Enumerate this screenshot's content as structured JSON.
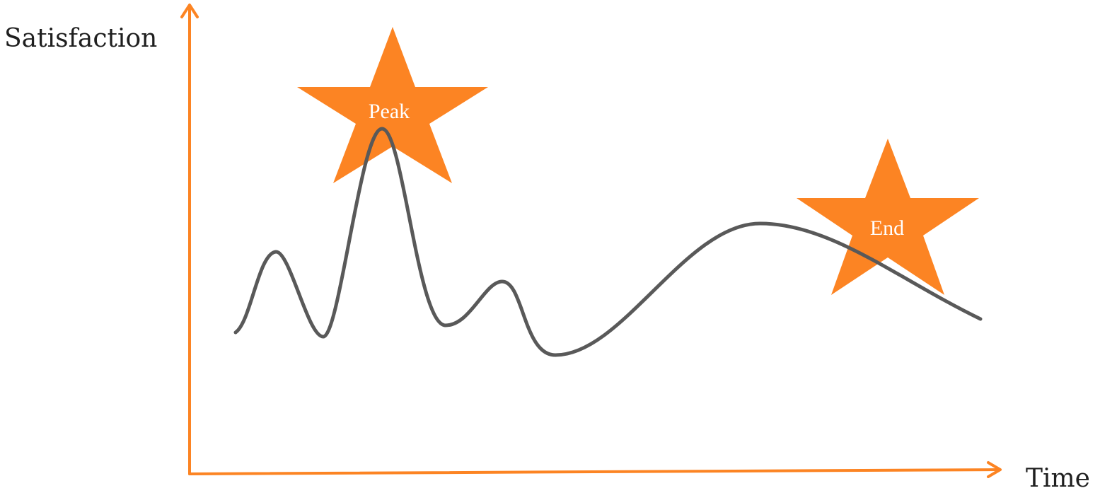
{
  "colors": {
    "axis": "#fc8423",
    "curve": "#595959",
    "star": "#fc8423",
    "star_text": "#ffffff",
    "label_text": "#1f1f1f"
  },
  "axes": {
    "y_label": "Satisfaction",
    "x_label": "Time"
  },
  "markers": {
    "peak": {
      "label": "Peak",
      "icon": "star-icon"
    },
    "end": {
      "label": "End",
      "icon": "star-icon"
    }
  }
}
